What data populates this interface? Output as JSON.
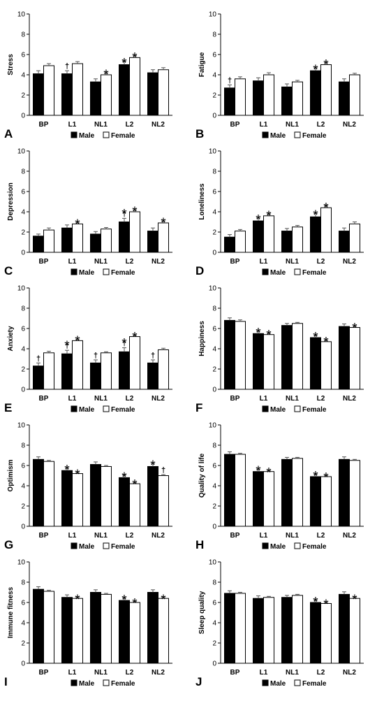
{
  "figure": {
    "legend": {
      "male": "Male",
      "female": "Female"
    },
    "colors": {
      "male": "#000000",
      "female": "#ffffff",
      "axis": "#000000"
    }
  },
  "chart_data": [
    {
      "type": "bar",
      "panel_letter": "A",
      "ylabel": "Stress",
      "categories": [
        "BP",
        "L1",
        "NL1",
        "L2",
        "NL2"
      ],
      "ylim": [
        0,
        10
      ],
      "yticks": [
        0,
        2,
        4,
        6,
        8,
        10
      ],
      "series": [
        {
          "name": "Male",
          "values": [
            4.1,
            4.1,
            3.3,
            5.0,
            4.2
          ],
          "errors": [
            0.3,
            0.3,
            0.3,
            0.35,
            0.3
          ],
          "marks": [
            "",
            "†",
            "",
            "*",
            ""
          ]
        },
        {
          "name": "Female",
          "values": [
            4.9,
            5.1,
            4.0,
            5.7,
            4.5
          ],
          "errors": [
            0.2,
            0.2,
            0.2,
            0.2,
            0.2
          ],
          "marks": [
            "",
            "",
            "*",
            "*",
            ""
          ]
        }
      ]
    },
    {
      "type": "bar",
      "panel_letter": "B",
      "ylabel": "Fatigue",
      "categories": [
        "BP",
        "L1",
        "NL1",
        "L2",
        "NL2"
      ],
      "ylim": [
        0,
        10
      ],
      "yticks": [
        0,
        2,
        4,
        6,
        8,
        10
      ],
      "series": [
        {
          "name": "Male",
          "values": [
            2.7,
            3.4,
            2.8,
            4.4,
            3.3
          ],
          "errors": [
            0.3,
            0.3,
            0.3,
            0.3,
            0.3
          ],
          "marks": [
            "†",
            "",
            "",
            "*",
            ""
          ]
        },
        {
          "name": "Female",
          "values": [
            3.6,
            4.0,
            3.3,
            5.0,
            4.0
          ],
          "errors": [
            0.2,
            0.2,
            0.15,
            0.2,
            0.15
          ],
          "marks": [
            "",
            "",
            "",
            "*",
            ""
          ]
        }
      ]
    },
    {
      "type": "bar",
      "panel_letter": "C",
      "ylabel": "Depression",
      "categories": [
        "BP",
        "L1",
        "NL1",
        "L2",
        "NL2"
      ],
      "ylim": [
        0,
        10
      ],
      "yticks": [
        0,
        2,
        4,
        6,
        8,
        10
      ],
      "series": [
        {
          "name": "Male",
          "values": [
            1.6,
            2.4,
            1.8,
            3.0,
            2.1
          ],
          "errors": [
            0.2,
            0.3,
            0.25,
            0.35,
            0.3
          ],
          "marks": [
            "",
            "",
            "",
            "*†",
            ""
          ]
        },
        {
          "name": "Female",
          "values": [
            2.2,
            2.8,
            2.3,
            4.0,
            2.9
          ],
          "errors": [
            0.2,
            0.15,
            0.15,
            0.2,
            0.2
          ],
          "marks": [
            "",
            "*",
            "",
            "*",
            "*"
          ]
        }
      ]
    },
    {
      "type": "bar",
      "panel_letter": "D",
      "ylabel": "Loneliness",
      "categories": [
        "BP",
        "L1",
        "NL1",
        "L2",
        "NL2"
      ],
      "ylim": [
        0,
        10
      ],
      "yticks": [
        0,
        2,
        4,
        6,
        8,
        10
      ],
      "series": [
        {
          "name": "Male",
          "values": [
            1.5,
            3.1,
            2.1,
            3.5,
            2.1
          ],
          "errors": [
            0.25,
            0.3,
            0.25,
            0.35,
            0.3
          ],
          "marks": [
            "",
            "*",
            "",
            "*",
            ""
          ]
        },
        {
          "name": "Female",
          "values": [
            2.1,
            3.6,
            2.5,
            4.4,
            2.8
          ],
          "errors": [
            0.15,
            0.2,
            0.15,
            0.2,
            0.2
          ],
          "marks": [
            "",
            "*",
            "",
            "*",
            ""
          ]
        }
      ]
    },
    {
      "type": "bar",
      "panel_letter": "E",
      "ylabel": "Anxiety",
      "categories": [
        "BP",
        "L1",
        "NL1",
        "L2",
        "NL2"
      ],
      "ylim": [
        0,
        10
      ],
      "yticks": [
        0,
        2,
        4,
        6,
        8,
        10
      ],
      "series": [
        {
          "name": "Male",
          "values": [
            2.3,
            3.5,
            2.6,
            3.7,
            2.6
          ],
          "errors": [
            0.3,
            0.35,
            0.3,
            0.4,
            0.3
          ],
          "marks": [
            "†",
            "*†",
            "†",
            "*†",
            "†"
          ]
        },
        {
          "name": "Female",
          "values": [
            3.6,
            4.8,
            3.6,
            5.2,
            3.9
          ],
          "errors": [
            0.15,
            0.15,
            0.1,
            0.15,
            0.15
          ],
          "marks": [
            "",
            "*",
            "",
            "*",
            ""
          ]
        }
      ]
    },
    {
      "type": "bar",
      "panel_letter": "F",
      "ylabel": "Happiness",
      "categories": [
        "BP",
        "L1",
        "NL1",
        "L2",
        "NL2"
      ],
      "ylim": [
        0,
        10
      ],
      "yticks": [
        0,
        2,
        4,
        6,
        8,
        10
      ],
      "series": [
        {
          "name": "Male",
          "values": [
            6.8,
            5.5,
            6.3,
            5.1,
            6.2
          ],
          "errors": [
            0.25,
            0.25,
            0.2,
            0.25,
            0.25
          ],
          "marks": [
            "",
            "*",
            "",
            "*",
            ""
          ]
        },
        {
          "name": "Female",
          "values": [
            6.7,
            5.4,
            6.5,
            4.7,
            6.1
          ],
          "errors": [
            0.15,
            0.15,
            0.1,
            0.15,
            0.15
          ],
          "marks": [
            "",
            "*",
            "",
            "*",
            "*"
          ]
        }
      ]
    },
    {
      "type": "bar",
      "panel_letter": "G",
      "ylabel": "Optimism",
      "categories": [
        "BP",
        "L1",
        "NL1",
        "L2",
        "NL2"
      ],
      "ylim": [
        0,
        10
      ],
      "yticks": [
        0,
        2,
        4,
        6,
        8,
        10
      ],
      "series": [
        {
          "name": "Male",
          "values": [
            6.6,
            5.5,
            6.1,
            4.8,
            5.9
          ],
          "errors": [
            0.25,
            0.25,
            0.25,
            0.25,
            0.3
          ],
          "marks": [
            "",
            "*",
            "",
            "*",
            "*"
          ]
        },
        {
          "name": "Female",
          "values": [
            6.4,
            5.2,
            5.9,
            4.2,
            5.0
          ],
          "errors": [
            0.1,
            0.1,
            0.1,
            0.1,
            0.1
          ],
          "marks": [
            "",
            "*",
            "",
            "*",
            "†"
          ]
        }
      ]
    },
    {
      "type": "bar",
      "panel_letter": "H",
      "ylabel": "Quality of life",
      "categories": [
        "BP",
        "L1",
        "NL1",
        "L2",
        "NL2"
      ],
      "ylim": [
        0,
        10
      ],
      "yticks": [
        0,
        2,
        4,
        6,
        8,
        10
      ],
      "series": [
        {
          "name": "Male",
          "values": [
            7.1,
            5.4,
            6.6,
            4.9,
            6.6
          ],
          "errors": [
            0.25,
            0.25,
            0.2,
            0.25,
            0.25
          ],
          "marks": [
            "",
            "*",
            "",
            "*",
            ""
          ]
        },
        {
          "name": "Female",
          "values": [
            7.1,
            5.4,
            6.7,
            4.9,
            6.5
          ],
          "errors": [
            0.1,
            0.1,
            0.1,
            0.1,
            0.1
          ],
          "marks": [
            "",
            "*",
            "",
            "*",
            ""
          ]
        }
      ]
    },
    {
      "type": "bar",
      "panel_letter": "I",
      "ylabel": "Immune fitness",
      "categories": [
        "BP",
        "L1",
        "NL1",
        "L2",
        "NL2"
      ],
      "ylim": [
        0,
        10
      ],
      "yticks": [
        0,
        2,
        4,
        6,
        8,
        10
      ],
      "series": [
        {
          "name": "Male",
          "values": [
            7.3,
            6.5,
            7.0,
            6.2,
            7.0
          ],
          "errors": [
            0.25,
            0.25,
            0.25,
            0.25,
            0.25
          ],
          "marks": [
            "",
            "",
            "",
            "*",
            ""
          ]
        },
        {
          "name": "Female",
          "values": [
            7.1,
            6.4,
            6.8,
            6.0,
            6.4
          ],
          "errors": [
            0.1,
            0.1,
            0.1,
            0.1,
            0.1
          ],
          "marks": [
            "",
            "*",
            "",
            "*",
            "*"
          ]
        }
      ]
    },
    {
      "type": "bar",
      "panel_letter": "J",
      "ylabel": "Sleep quality",
      "categories": [
        "BP",
        "L1",
        "NL1",
        "L2",
        "NL2"
      ],
      "ylim": [
        0,
        10
      ],
      "yticks": [
        0,
        2,
        4,
        6,
        8,
        10
      ],
      "series": [
        {
          "name": "Male",
          "values": [
            6.9,
            6.4,
            6.5,
            6.0,
            6.8
          ],
          "errors": [
            0.25,
            0.25,
            0.2,
            0.25,
            0.25
          ],
          "marks": [
            "",
            "",
            "",
            "*",
            ""
          ]
        },
        {
          "name": "Female",
          "values": [
            6.9,
            6.5,
            6.7,
            5.9,
            6.4
          ],
          "errors": [
            0.1,
            0.1,
            0.1,
            0.1,
            0.1
          ],
          "marks": [
            "",
            "",
            "",
            "*",
            "*"
          ]
        }
      ]
    }
  ]
}
